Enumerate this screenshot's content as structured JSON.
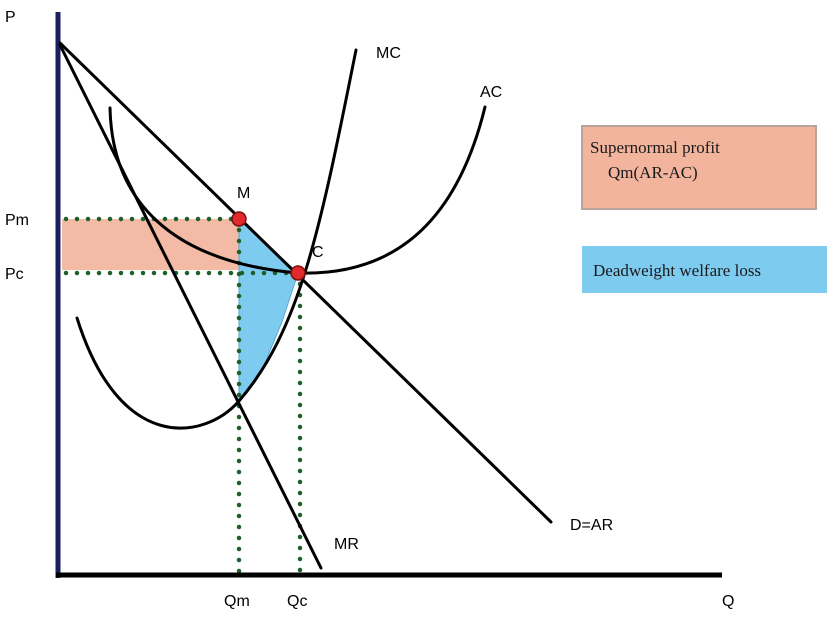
{
  "axes": {
    "y_label": "P",
    "x_label": "Q"
  },
  "price_labels": {
    "pm": "Pm",
    "pc": "Pc"
  },
  "quantity_labels": {
    "qm": "Qm",
    "qc": "Qc"
  },
  "curve_labels": {
    "mc": "MC",
    "ac": "AC",
    "demand": "D=AR",
    "mr": "MR"
  },
  "point_labels": {
    "m": "M",
    "c": "C"
  },
  "legend": {
    "profit_line1": "Supernormal profit",
    "profit_line2": "Qm(AR-AC)",
    "deadweight": "Deadweight welfare loss"
  },
  "colors": {
    "axis": "#1b1f5e",
    "curve": "#000000",
    "dotted_guides": "#1f5f2a",
    "profit_fill": "#f2b49c",
    "deadweight_fill": "#7ecbf0",
    "equilibrium_point": "#e0292b"
  }
}
